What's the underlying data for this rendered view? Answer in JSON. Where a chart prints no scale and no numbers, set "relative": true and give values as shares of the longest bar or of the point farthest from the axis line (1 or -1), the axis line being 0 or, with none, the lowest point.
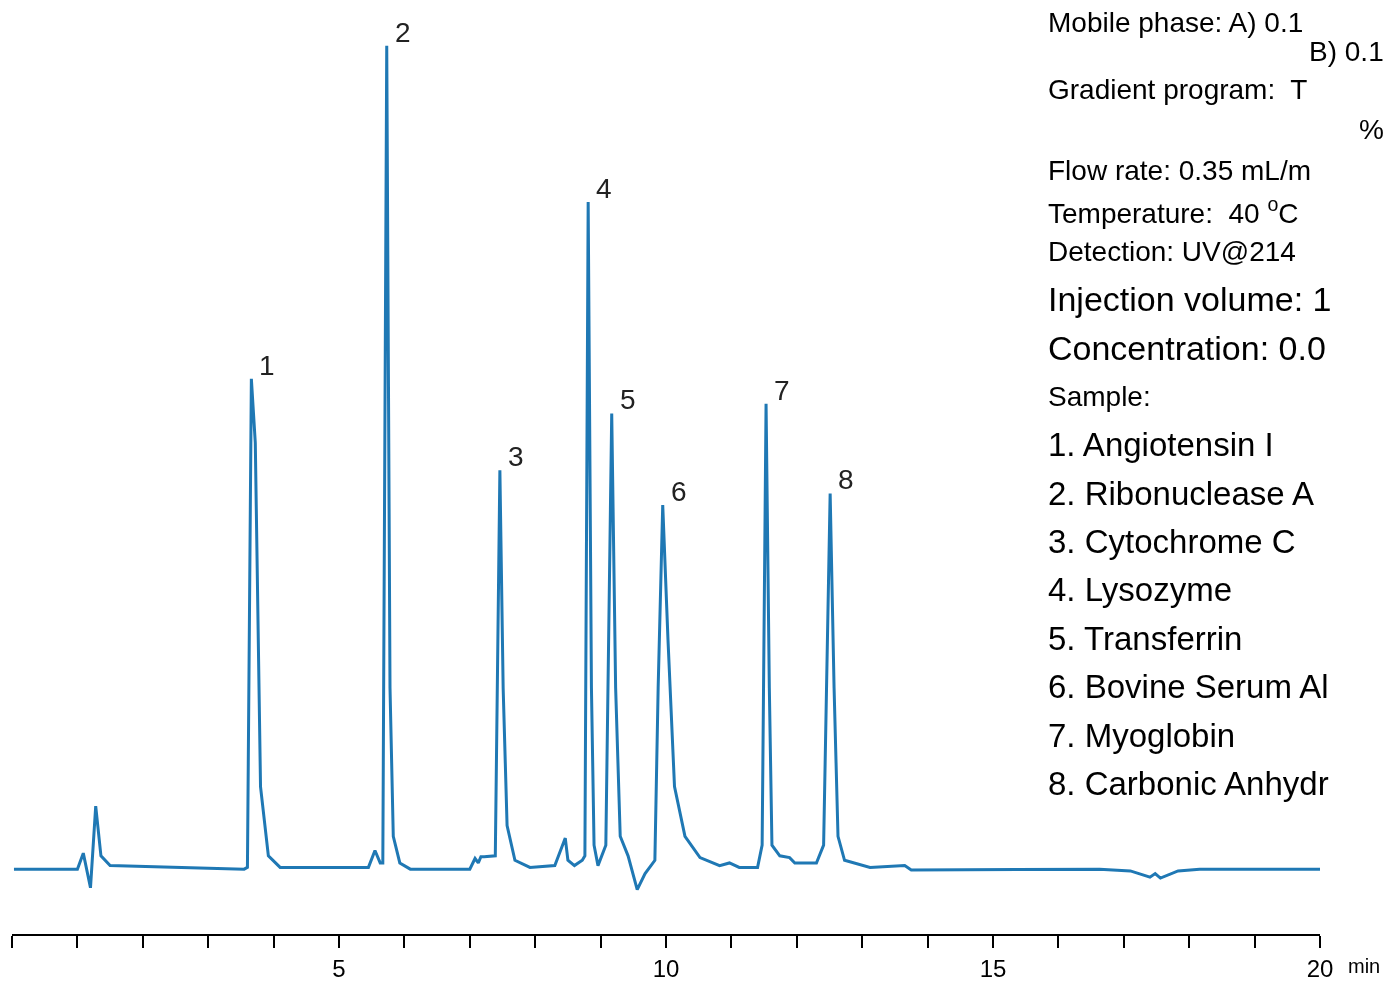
{
  "chart_data": {
    "type": "line",
    "relative": true,
    "xlabel": "min",
    "xlim": [
      0,
      20
    ],
    "xticks": [
      {
        "value": 0,
        "label": null
      },
      {
        "value": 1,
        "label": null
      },
      {
        "value": 2,
        "label": null
      },
      {
        "value": 3,
        "label": null
      },
      {
        "value": 4,
        "label": null
      },
      5,
      {
        "value": 6,
        "label": null
      },
      {
        "value": 7,
        "label": null
      },
      {
        "value": 8,
        "label": null
      },
      {
        "value": 9,
        "label": null
      },
      10,
      {
        "value": 11,
        "label": null
      },
      {
        "value": 12,
        "label": null
      },
      {
        "value": 13,
        "label": null
      },
      {
        "value": 14,
        "label": null
      },
      15,
      {
        "value": 16,
        "label": null
      },
      {
        "value": 17,
        "label": null
      },
      {
        "value": 18,
        "label": null
      },
      {
        "value": 19,
        "label": null
      },
      20
    ],
    "marker": "none",
    "line_style": "solid",
    "series": [
      {
        "color": "#1f78b4",
        "x": [
          0.03,
          1.0,
          1.09,
          1.2,
          1.28,
          1.36,
          1.5,
          3.55,
          3.6,
          3.66,
          3.72,
          3.8,
          3.92,
          4.1,
          5.45,
          5.55,
          5.63,
          5.67,
          5.73,
          5.78,
          5.83,
          5.93,
          6.09,
          7.0,
          7.08,
          7.13,
          7.17,
          7.22,
          7.39,
          7.46,
          7.51,
          7.57,
          7.69,
          7.92,
          8.3,
          8.46,
          8.5,
          8.6,
          8.72,
          8.76,
          8.81,
          8.86,
          8.9,
          8.96,
          9.08,
          9.17,
          9.23,
          9.3,
          9.42,
          9.56,
          9.68,
          9.83,
          9.88,
          9.95,
          10.03,
          10.13,
          10.29,
          10.52,
          10.82,
          10.97,
          11.12,
          11.4,
          11.47,
          11.53,
          11.58,
          11.62,
          11.74,
          11.89,
          11.97,
          12.3,
          12.41,
          12.51,
          12.57,
          12.63,
          12.73,
          13.12,
          13.65,
          13.75,
          16.63,
          17.1,
          17.4,
          17.48,
          17.56,
          17.83,
          18.16,
          20.0
        ],
        "values": [
          0.073,
          0.073,
          0.091,
          0.052,
          0.144,
          0.088,
          0.077,
          0.073,
          0.075,
          0.625,
          0.553,
          0.166,
          0.088,
          0.075,
          0.075,
          0.094,
          0.08,
          0.08,
          1.0,
          0.277,
          0.11,
          0.08,
          0.073,
          0.073,
          0.085,
          0.08,
          0.087,
          0.087,
          0.088,
          0.522,
          0.277,
          0.122,
          0.083,
          0.075,
          0.077,
          0.108,
          0.083,
          0.077,
          0.083,
          0.088,
          0.824,
          0.277,
          0.1,
          0.077,
          0.1,
          0.586,
          0.277,
          0.11,
          0.088,
          0.05,
          0.068,
          0.083,
          0.277,
          0.483,
          0.332,
          0.166,
          0.11,
          0.086,
          0.077,
          0.08,
          0.075,
          0.075,
          0.1,
          0.597,
          0.277,
          0.1,
          0.088,
          0.086,
          0.08,
          0.08,
          0.1,
          0.496,
          0.277,
          0.11,
          0.083,
          0.075,
          0.077,
          0.072,
          0.073,
          0.071,
          0.064,
          0.068,
          0.063,
          0.071,
          0.073,
          0.073
        ]
      }
    ],
    "annotations": [
      {
        "text": "1",
        "x": 3.66,
        "y": 0.625
      },
      {
        "text": "2",
        "x": 5.73,
        "y": 1.0
      },
      {
        "text": "3",
        "x": 7.46,
        "y": 0.522
      },
      {
        "text": "4",
        "x": 8.81,
        "y": 0.824
      },
      {
        "text": "5",
        "x": 9.17,
        "y": 0.586
      },
      {
        "text": "6",
        "x": 9.95,
        "y": 0.483
      },
      {
        "text": "7",
        "x": 11.53,
        "y": 0.597
      },
      {
        "text": "8",
        "x": 12.51,
        "y": 0.496
      },
      "Mobile phase: A) 0.1",
      "B) 0.1",
      "Gradient program:  T",
      "%",
      "Flow rate: 0.35 mL/m",
      "Temperature:  40 $^{o}$C",
      "Detection: UV@214",
      "Injection volume: 1",
      "Concentration: 0.0",
      "Sample:",
      "1. Angiotensin I",
      "2. Ribonuclease A",
      "3. Cytochrome C",
      "4. Lysozyme",
      "5. Transferrin",
      "6. Bovine Serum Al",
      "7. Myoglobin",
      "8. Carbonic Anhydr"
    ]
  }
}
